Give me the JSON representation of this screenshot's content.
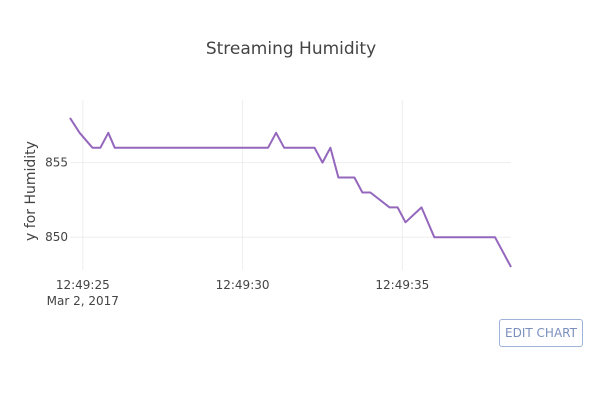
{
  "chart_data": {
    "type": "line",
    "title": "Streaming Humidity",
    "xlabel": "",
    "ylabel": "y for Humidity",
    "x_ticks": [
      {
        "t": 0,
        "label": "12:49:25",
        "sublabel": "Mar 2, 2017"
      },
      {
        "t": 5,
        "label": "12:49:30",
        "sublabel": ""
      },
      {
        "t": 10,
        "label": "12:49:35",
        "sublabel": ""
      }
    ],
    "y_ticks": [
      850,
      855
    ],
    "xlim": [
      "12:49:24.6",
      "12:49:38.4"
    ],
    "ylim": [
      847.8,
      859.2
    ],
    "grid": true,
    "series": [
      {
        "name": "",
        "color": "#9467bd",
        "x": [
          "12:49:24.6",
          "12:49:24.9",
          "12:49:25.3",
          "12:49:25.55",
          "12:49:25.8",
          "12:49:26.0",
          "12:49:27.0",
          "12:49:28.0",
          "12:49:29.0",
          "12:49:30.0",
          "12:49:30.8",
          "12:49:31.05",
          "12:49:31.3",
          "12:49:32.0",
          "12:49:32.25",
          "12:49:32.5",
          "12:49:32.75",
          "12:49:33.0",
          "12:49:33.5",
          "12:49:33.75",
          "12:49:34.0",
          "12:49:34.6",
          "12:49:34.85",
          "12:49:35.1",
          "12:49:35.6",
          "12:49:36.0",
          "12:49:37.0",
          "12:49:37.6",
          "12:49:37.9",
          "12:49:38.4"
        ],
        "y": [
          858,
          857,
          856,
          856,
          857,
          856,
          856,
          856,
          856,
          856,
          856,
          857,
          856,
          856,
          856,
          855,
          856,
          854,
          854,
          853,
          853,
          852,
          852,
          851,
          852,
          850,
          850,
          850,
          850,
          848
        ]
      }
    ]
  },
  "controls": {
    "edit_chart_label": "EDIT CHART"
  }
}
